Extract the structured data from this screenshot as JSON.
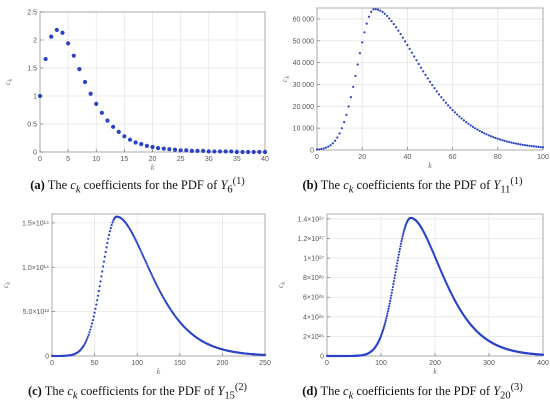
{
  "chart_data": [
    {
      "type": "scatter",
      "panel_label": "(a)",
      "caption_pre": "The ",
      "caption_sym": "c",
      "caption_sym_sub": "k",
      "caption_mid": " coefficients for the PDF of ",
      "caption_var": "Y",
      "caption_var_sub": "6",
      "caption_var_sup": "(1)",
      "xlabel": "k",
      "ylabel": "c",
      "ylabel_sub": "k",
      "xlim": [
        0,
        40
      ],
      "ylim": [
        0,
        2.5
      ],
      "xticks": [
        0,
        5,
        10,
        15,
        20,
        25,
        30,
        35,
        40
      ],
      "xtick_labels": [
        "0",
        "5",
        "10",
        "15",
        "20",
        "25",
        "30",
        "35",
        "40"
      ],
      "yticks": [
        0,
        0.5,
        1,
        1.5,
        2,
        2.5
      ],
      "ytick_labels": [
        "0",
        "0.5",
        "1",
        "1.5",
        "2",
        "2.5"
      ],
      "grid": true,
      "color": "#2a43c6",
      "x": [
        0,
        1,
        2,
        3,
        4,
        5,
        6,
        7,
        8,
        9,
        10,
        11,
        12,
        13,
        14,
        15,
        16,
        17,
        18,
        19,
        20,
        21,
        22,
        23,
        24,
        25,
        26,
        27,
        28,
        29,
        30,
        31,
        32,
        33,
        34,
        35,
        36,
        37,
        38,
        39,
        40
      ],
      "y": [
        1.0,
        1.66,
        2.06,
        2.18,
        2.13,
        1.94,
        1.72,
        1.48,
        1.25,
        1.04,
        0.86,
        0.7,
        0.56,
        0.45,
        0.36,
        0.28,
        0.22,
        0.17,
        0.14,
        0.11,
        0.09,
        0.07,
        0.06,
        0.05,
        0.04,
        0.03,
        0.03,
        0.02,
        0.02,
        0.02,
        0.01,
        0.01,
        0.01,
        0.01,
        0.01,
        0.0,
        0.0,
        0.0,
        0.0,
        0.0,
        0.0
      ]
    },
    {
      "type": "scatter",
      "panel_label": "(b)",
      "caption_pre": "The ",
      "caption_sym": "c",
      "caption_sym_sub": "k",
      "caption_mid": " coefficients for the PDF of ",
      "caption_var": "Y",
      "caption_var_sub": "11",
      "caption_var_sup": "(1)",
      "xlabel": "k",
      "ylabel": "c",
      "ylabel_sub": "k",
      "xlim": [
        0,
        100
      ],
      "ylim": [
        0,
        65000
      ],
      "xticks": [
        0,
        20,
        40,
        60,
        80,
        100
      ],
      "xtick_labels": [
        "0",
        "20",
        "40",
        "60",
        "80",
        "100"
      ],
      "yticks": [
        0,
        10000,
        20000,
        30000,
        40000,
        50000,
        60000
      ],
      "ytick_labels": [
        "0",
        "10 000",
        "20 000",
        "30 000",
        "40 000",
        "50 000",
        "60 000"
      ],
      "grid": true,
      "color": "#2a43c6",
      "curve": {
        "peak_x": 25.5,
        "peak_y": 64500,
        "start_y": 50,
        "left_width": 7.5,
        "right_decay": 16.5,
        "count": 100
      },
      "x": [],
      "y": []
    },
    {
      "type": "scatter",
      "panel_label": "(c)",
      "caption_pre": "The ",
      "caption_sym": "c",
      "caption_sym_sub": "k",
      "caption_mid": " coefficients for the PDF of ",
      "caption_var": "Y",
      "caption_var_sub": "15",
      "caption_var_sup": "(2)",
      "xlabel": "k",
      "ylabel": "c",
      "ylabel_sub": "k",
      "xlim": [
        0,
        250
      ],
      "ylim": [
        0,
        160000000000000.0
      ],
      "xticks": [
        0,
        50,
        100,
        150,
        200,
        250
      ],
      "xtick_labels": [
        "0",
        "50",
        "100",
        "150",
        "200",
        "250"
      ],
      "yticks": [
        0,
        50000000000000.0,
        100000000000000.0,
        150000000000000.0
      ],
      "ytick_labels": [
        "0",
        "5.0×10¹³",
        "1.0×10¹⁴",
        "1.5×10¹⁴"
      ],
      "grid": true,
      "color": "#2a43c6",
      "curve": {
        "peak_x": 76,
        "peak_y": 157000000000000.0,
        "start_y": 0,
        "left_width": 17,
        "right_decay": 33,
        "count": 250
      },
      "x": [],
      "y": []
    },
    {
      "type": "scatter",
      "panel_label": "(d)",
      "caption_pre": "The ",
      "caption_sym": "c",
      "caption_sym_sub": "k",
      "caption_mid": " coefficients for the PDF of ",
      "caption_var": "Y",
      "caption_var_sub": "20",
      "caption_var_sup": "(3)",
      "xlabel": "k",
      "ylabel": "c",
      "ylabel_sub": "k",
      "xlim": [
        0,
        400
      ],
      "ylim": [
        0,
        1.45e+27
      ],
      "xticks": [
        0,
        100,
        200,
        300,
        400
      ],
      "xtick_labels": [
        "0",
        "100",
        "200",
        "300",
        "400"
      ],
      "yticks": [
        0,
        2e+26,
        4e+26,
        6e+26,
        8e+26,
        1e+27,
        1.2e+27,
        1.4e+27
      ],
      "ytick_labels": [
        "0",
        "2×10²⁶",
        "4×10²⁶",
        "6×10²⁶",
        "8×10²⁶",
        "1×10²⁷",
        "1.2×10²⁷",
        "1.4×10²⁷"
      ],
      "grid": true,
      "color": "#2a43c6",
      "curve": {
        "peak_x": 155,
        "peak_y": 1.41e+27,
        "start_y": 0,
        "left_width": 28,
        "right_decay": 48,
        "count": 400
      },
      "x": [],
      "y": []
    }
  ]
}
